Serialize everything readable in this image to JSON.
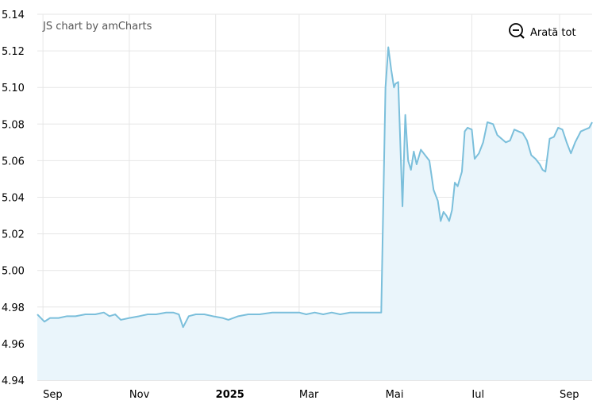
{
  "credit": "JS chart by amCharts",
  "zoom_out_label": "Arată tot",
  "icons": {
    "zoom": "zoom-out-icon"
  },
  "colors": {
    "line": "#7bbfdb",
    "fill": "#eaf5fb",
    "grid": "#e6e6e6"
  },
  "chart_data": {
    "type": "area",
    "title": "",
    "xlabel": "",
    "ylabel": "",
    "ylim": [
      4.94,
      5.14
    ],
    "y_ticks": [
      "5.14",
      "5.12",
      "5.10",
      "5.08",
      "5.06",
      "5.04",
      "5.02",
      "5.00",
      "4.98",
      "4.96",
      "4.94"
    ],
    "y_tick_values": [
      5.14,
      5.12,
      5.1,
      5.08,
      5.06,
      5.04,
      5.02,
      5.0,
      4.98,
      4.96,
      4.94
    ],
    "x_range": [
      "2024-08-28",
      "2025-09-24"
    ],
    "x_ticks": [
      {
        "label": "Sep",
        "date": "2024-09-01",
        "bold": false
      },
      {
        "label": "Nov",
        "date": "2024-11-01",
        "bold": false
      },
      {
        "label": "2025",
        "date": "2025-01-01",
        "bold": true
      },
      {
        "label": "Mar",
        "date": "2025-03-01",
        "bold": false
      },
      {
        "label": "Mai",
        "date": "2025-05-01",
        "bold": false
      },
      {
        "label": "Iul",
        "date": "2025-07-01",
        "bold": false
      },
      {
        "label": "Sep",
        "date": "2025-09-01",
        "bold": false
      }
    ],
    "grid": true,
    "series": [
      {
        "points": [
          [
            "2024-08-28",
            4.976
          ],
          [
            "2024-09-02",
            4.972
          ],
          [
            "2024-09-06",
            4.974
          ],
          [
            "2024-09-12",
            4.974
          ],
          [
            "2024-09-18",
            4.975
          ],
          [
            "2024-09-24",
            4.975
          ],
          [
            "2024-10-01",
            4.976
          ],
          [
            "2024-10-08",
            4.976
          ],
          [
            "2024-10-14",
            4.977
          ],
          [
            "2024-10-18",
            4.975
          ],
          [
            "2024-10-22",
            4.976
          ],
          [
            "2024-10-26",
            4.973
          ],
          [
            "2024-11-01",
            4.974
          ],
          [
            "2024-11-08",
            4.975
          ],
          [
            "2024-11-14",
            4.976
          ],
          [
            "2024-11-20",
            4.976
          ],
          [
            "2024-11-27",
            4.977
          ],
          [
            "2024-12-02",
            4.977
          ],
          [
            "2024-12-06",
            4.976
          ],
          [
            "2024-12-09",
            4.969
          ],
          [
            "2024-12-13",
            4.975
          ],
          [
            "2024-12-18",
            4.976
          ],
          [
            "2024-12-24",
            4.976
          ],
          [
            "2024-12-30",
            4.975
          ],
          [
            "2025-01-06",
            4.974
          ],
          [
            "2025-01-10",
            4.973
          ],
          [
            "2025-01-17",
            4.975
          ],
          [
            "2025-01-24",
            4.976
          ],
          [
            "2025-02-01",
            4.976
          ],
          [
            "2025-02-10",
            4.977
          ],
          [
            "2025-02-20",
            4.977
          ],
          [
            "2025-03-01",
            4.977
          ],
          [
            "2025-03-06",
            4.976
          ],
          [
            "2025-03-12",
            4.977
          ],
          [
            "2025-03-18",
            4.976
          ],
          [
            "2025-03-24",
            4.977
          ],
          [
            "2025-03-30",
            4.976
          ],
          [
            "2025-04-06",
            4.977
          ],
          [
            "2025-04-14",
            4.977
          ],
          [
            "2025-04-22",
            4.977
          ],
          [
            "2025-04-28",
            4.977
          ],
          [
            "2025-05-01",
            5.1
          ],
          [
            "2025-05-03",
            5.122
          ],
          [
            "2025-05-05",
            5.11
          ],
          [
            "2025-05-07",
            5.1
          ],
          [
            "2025-05-08",
            5.102
          ],
          [
            "2025-05-10",
            5.103
          ],
          [
            "2025-05-13",
            5.035
          ],
          [
            "2025-05-15",
            5.085
          ],
          [
            "2025-05-17",
            5.06
          ],
          [
            "2025-05-19",
            5.055
          ],
          [
            "2025-05-21",
            5.065
          ],
          [
            "2025-05-23",
            5.058
          ],
          [
            "2025-05-26",
            5.066
          ],
          [
            "2025-05-29",
            5.063
          ],
          [
            "2025-06-01",
            5.06
          ],
          [
            "2025-06-04",
            5.044
          ],
          [
            "2025-06-07",
            5.038
          ],
          [
            "2025-06-09",
            5.027
          ],
          [
            "2025-06-11",
            5.032
          ],
          [
            "2025-06-13",
            5.03
          ],
          [
            "2025-06-15",
            5.027
          ],
          [
            "2025-06-17",
            5.033
          ],
          [
            "2025-06-19",
            5.048
          ],
          [
            "2025-06-21",
            5.046
          ],
          [
            "2025-06-24",
            5.054
          ],
          [
            "2025-06-26",
            5.076
          ],
          [
            "2025-06-28",
            5.078
          ],
          [
            "2025-07-01",
            5.077
          ],
          [
            "2025-07-03",
            5.061
          ],
          [
            "2025-07-06",
            5.064
          ],
          [
            "2025-07-09",
            5.07
          ],
          [
            "2025-07-12",
            5.081
          ],
          [
            "2025-07-16",
            5.08
          ],
          [
            "2025-07-19",
            5.074
          ],
          [
            "2025-07-22",
            5.072
          ],
          [
            "2025-07-25",
            5.07
          ],
          [
            "2025-07-28",
            5.071
          ],
          [
            "2025-07-31",
            5.077
          ],
          [
            "2025-08-03",
            5.076
          ],
          [
            "2025-08-06",
            5.075
          ],
          [
            "2025-08-09",
            5.071
          ],
          [
            "2025-08-12",
            5.063
          ],
          [
            "2025-08-15",
            5.061
          ],
          [
            "2025-08-18",
            5.058
          ],
          [
            "2025-08-20",
            5.055
          ],
          [
            "2025-08-22",
            5.054
          ],
          [
            "2025-08-25",
            5.072
          ],
          [
            "2025-08-28",
            5.073
          ],
          [
            "2025-08-31",
            5.078
          ],
          [
            "2025-09-03",
            5.077
          ],
          [
            "2025-09-06",
            5.07
          ],
          [
            "2025-09-09",
            5.064
          ],
          [
            "2025-09-12",
            5.07
          ],
          [
            "2025-09-16",
            5.076
          ],
          [
            "2025-09-19",
            5.077
          ],
          [
            "2025-09-22",
            5.078
          ],
          [
            "2025-09-24",
            5.081
          ]
        ]
      }
    ]
  }
}
